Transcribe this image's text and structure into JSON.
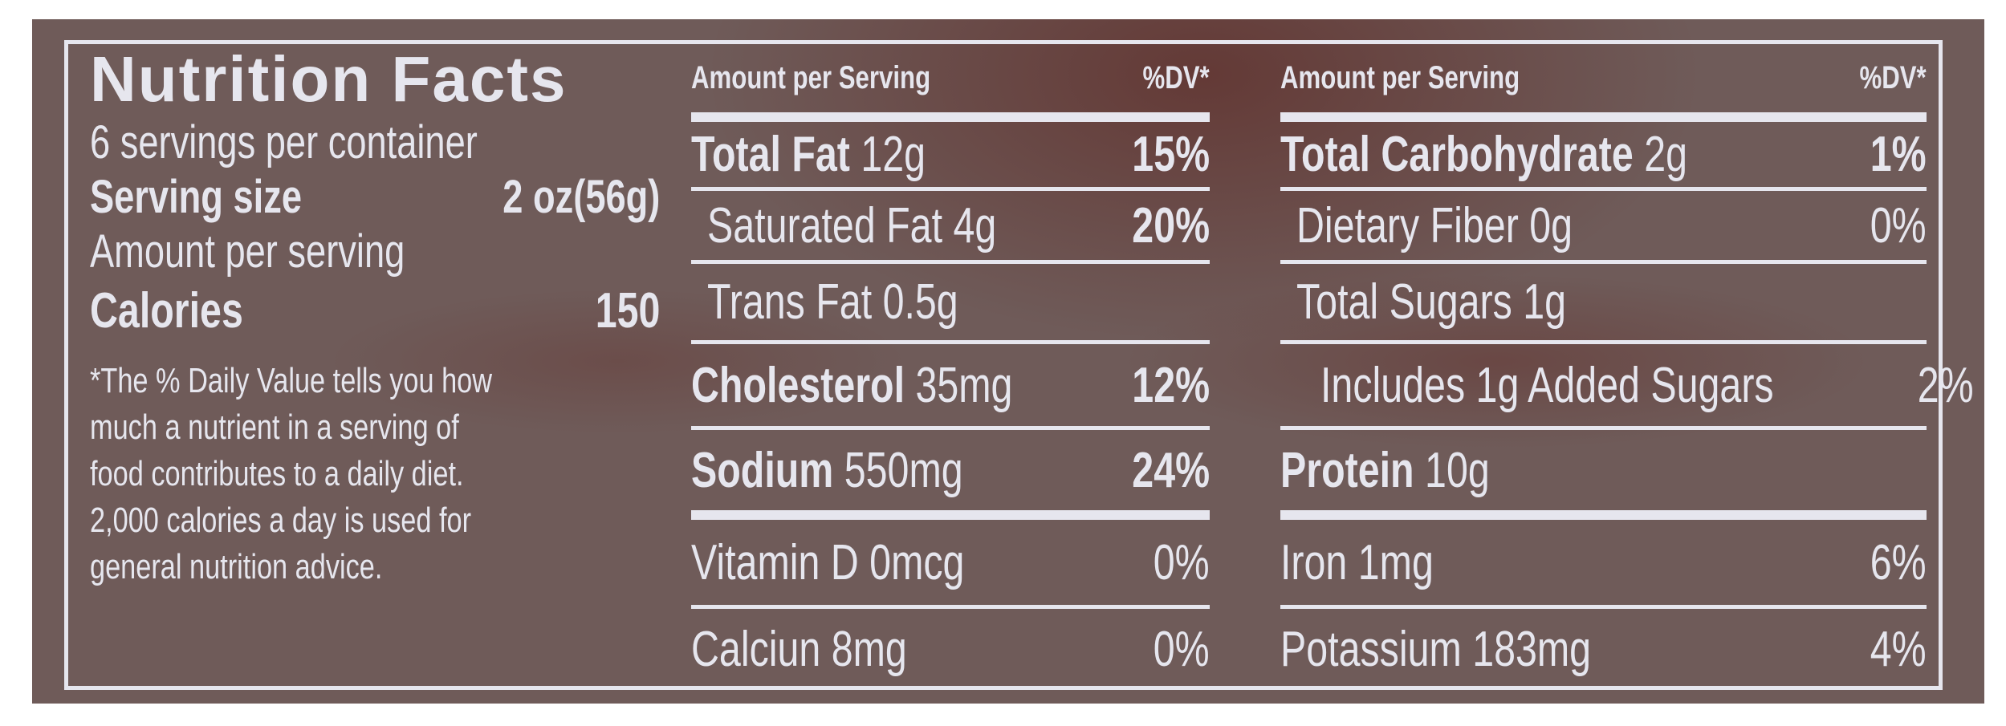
{
  "left": {
    "title": "Nutrition Facts",
    "servings": "6 servings per container",
    "serving_size_label": "Serving size",
    "serving_size_value": "2 oz(56g)",
    "amount_per_serving": "Amount per serving",
    "calories_label": "Calories",
    "calories_value": "150",
    "footnote": [
      "*The % Daily Value tells you how",
      "much a nutrient in a serving of",
      "food contributes to a daily diet.",
      "2,000 calories a day is used for",
      "general nutrition advice."
    ]
  },
  "middle": {
    "header": {
      "amount": "Amount per Serving",
      "dv": "%DV*"
    },
    "rows": [
      {
        "name": "Total Fat",
        "amount": "12g",
        "dv": "15%"
      },
      {
        "name": "Saturated Fat 4g",
        "amount": "",
        "dv": "20%"
      },
      {
        "name": "Trans Fat 0.5g",
        "amount": "",
        "dv": ""
      },
      {
        "name": "Cholesterol",
        "amount": "35mg",
        "dv": "12%"
      },
      {
        "name": "Sodium",
        "amount": "550mg",
        "dv": "24%"
      },
      {
        "name": "Vitamin D 0mcg",
        "amount": "",
        "dv": "0%"
      },
      {
        "name": "Calciun 8mg",
        "amount": "",
        "dv": "0%"
      }
    ]
  },
  "right": {
    "header": {
      "amount": "Amount per Serving",
      "dv": "%DV*"
    },
    "rows": [
      {
        "name": "Total Carbohydrate",
        "amount": "2g",
        "dv": "1%"
      },
      {
        "name": "Dietary Fiber 0g",
        "amount": "",
        "dv": "0%"
      },
      {
        "name": "Total Sugars 1g",
        "amount": "",
        "dv": ""
      },
      {
        "name": "Includes 1g Added Sugars",
        "amount": "",
        "dv": "2%"
      },
      {
        "name": "Protein",
        "amount": "10g",
        "dv": ""
      },
      {
        "name": "Iron 1mg",
        "amount": "",
        "dv": "6%"
      },
      {
        "name": "Potassium 183mg",
        "amount": "",
        "dv": "4%"
      }
    ]
  },
  "colors": {
    "background": "#6f5b59",
    "text": "#e6e6ee"
  }
}
